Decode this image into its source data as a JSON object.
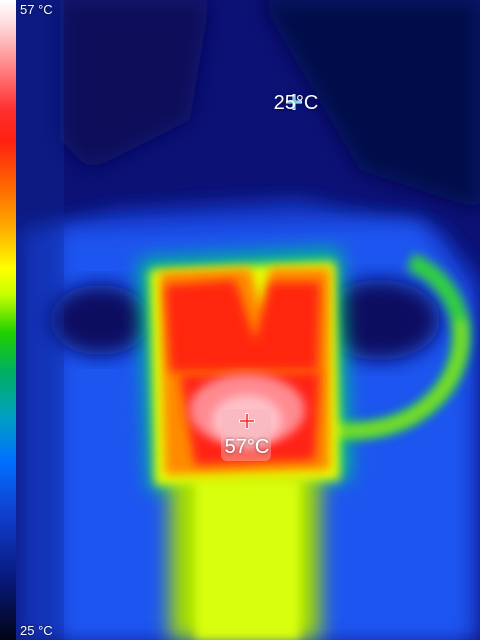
{
  "scale": {
    "max_label": "57 °C",
    "min_label": "25 °C"
  },
  "measurements": {
    "cold_spot_label": "25°C",
    "hot_spot_label": "57°C"
  },
  "colors": {
    "cold_marker": "#5ad7ff",
    "hot_marker": "#ff2020",
    "background": "#0a0f6e"
  },
  "icons": {
    "cold": "crosshair-icon",
    "hot": "crosshair-icon"
  }
}
